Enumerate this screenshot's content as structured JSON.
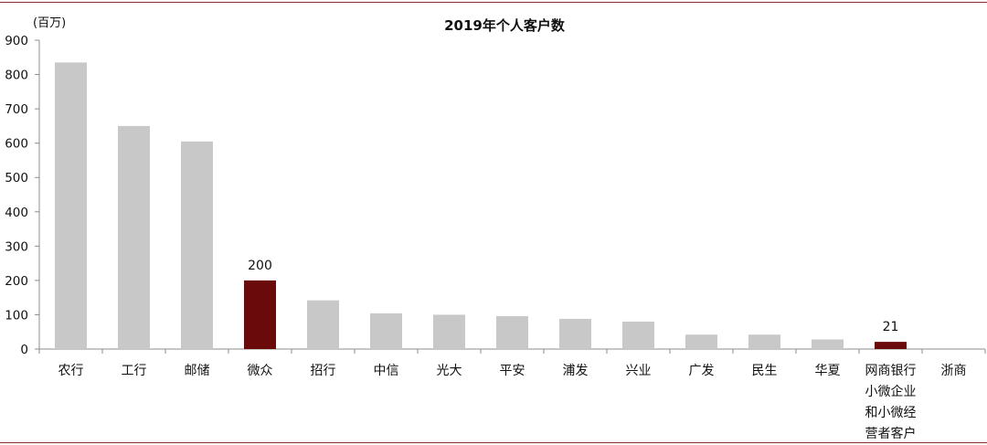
{
  "chart_data": {
    "type": "bar",
    "title": "2019年个人客户数",
    "unit_label": "(百万)",
    "xlabel": "",
    "ylabel": "",
    "ylim": [
      0,
      900
    ],
    "yticks": [
      0,
      100,
      200,
      300,
      400,
      500,
      600,
      700,
      800,
      900
    ],
    "grid": false,
    "legend": "none",
    "categories": [
      [
        "农行"
      ],
      [
        "工行"
      ],
      [
        "邮储"
      ],
      [
        "微众"
      ],
      [
        "招行"
      ],
      [
        "中信"
      ],
      [
        "光大"
      ],
      [
        "平安"
      ],
      [
        "浦发"
      ],
      [
        "兴业"
      ],
      [
        "广发"
      ],
      [
        "民生"
      ],
      [
        "华夏"
      ],
      [
        "网商银行",
        "小微企业",
        "和小微经",
        "营者客户"
      ],
      [
        "浙商"
      ]
    ],
    "values": [
      835,
      650,
      605,
      200,
      142,
      104,
      100,
      96,
      88,
      80,
      42,
      42,
      28,
      21,
      0
    ],
    "highlight": [
      false,
      false,
      false,
      true,
      false,
      false,
      false,
      false,
      false,
      false,
      false,
      false,
      false,
      true,
      false
    ],
    "data_labels": {
      "3": "200",
      "13": "21"
    },
    "colors": {
      "bar": "#c8c8c8",
      "highlight": "#6b0a0a",
      "axis": "#8c8c8c"
    }
  }
}
